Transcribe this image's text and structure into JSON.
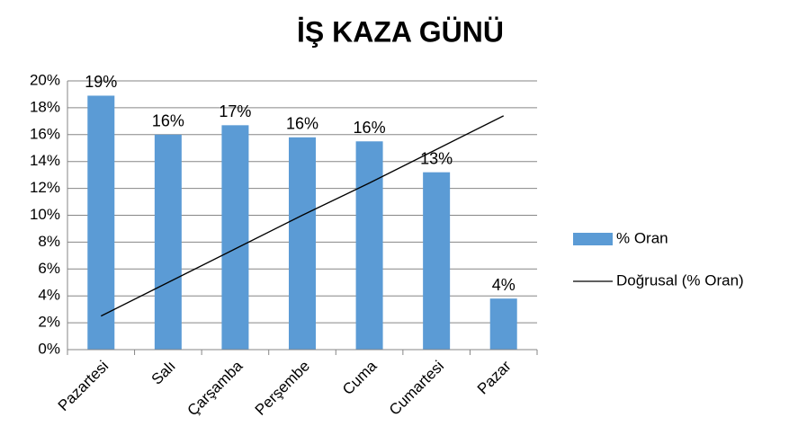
{
  "chart_data": {
    "type": "bar",
    "title": "İŞ KAZA GÜNÜ",
    "categories": [
      "Pazartesi",
      "Salı",
      "Çarşamba",
      "Perşembe",
      "Cuma",
      "Cumartesi",
      "Pazar"
    ],
    "series": [
      {
        "name": "% Oran",
        "color": "#5b9bd5",
        "type": "bar",
        "values": [
          18.9,
          16.0,
          16.7,
          15.8,
          15.5,
          13.2,
          3.8
        ],
        "value_labels": [
          "19%",
          "16%",
          "17%",
          "16%",
          "16%",
          "13%",
          "4%"
        ]
      },
      {
        "name": "Doğrusal (% Oran)",
        "color": "#000000",
        "type": "line",
        "values": [
          2.5,
          5.0,
          7.5,
          10.0,
          12.4,
          14.9,
          17.4
        ]
      }
    ],
    "ylim": [
      0,
      20
    ],
    "yticks": [
      {
        "value": 0,
        "label": "0%"
      },
      {
        "value": 2,
        "label": "2%"
      },
      {
        "value": 4,
        "label": "4%"
      },
      {
        "value": 6,
        "label": "6%"
      },
      {
        "value": 8,
        "label": "8%"
      },
      {
        "value": 10,
        "label": "10%"
      },
      {
        "value": 12,
        "label": "12%"
      },
      {
        "value": 14,
        "label": "14%"
      },
      {
        "value": 16,
        "label": "16%"
      },
      {
        "value": 18,
        "label": "18%"
      },
      {
        "value": 20,
        "label": "20%"
      }
    ],
    "grid": true,
    "legend": "right"
  }
}
